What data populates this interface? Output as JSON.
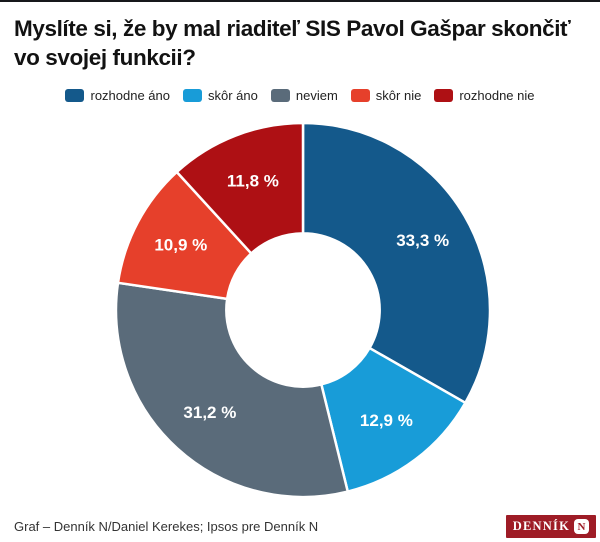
{
  "page": {
    "top_border_color": "#16181b",
    "background": "#ffffff"
  },
  "title": "Myslíte si, že by mal riaditeľ SIS Pavol Gašpar skončiť vo svojej funkcii?",
  "legend": {
    "items": [
      {
        "label": "rozhodne áno",
        "color": "#14598b"
      },
      {
        "label": "skôr áno",
        "color": "#189cd8"
      },
      {
        "label": "neviem",
        "color": "#5a6b7a"
      },
      {
        "label": "skôr nie",
        "color": "#e6402b"
      },
      {
        "label": "rozhodne nie",
        "color": "#ae1014"
      }
    ]
  },
  "chart_data": {
    "type": "pie",
    "subtype": "donut",
    "title": "Myslíte si, že by mal riaditeľ SIS Pavol Gašpar skončiť vo svojej funkcii?",
    "categories": [
      "rozhodne áno",
      "skôr áno",
      "neviem",
      "skôr nie",
      "rozhodne nie"
    ],
    "values": [
      33.3,
      12.9,
      31.2,
      10.9,
      11.8
    ],
    "labels": [
      "33,3 %",
      "12,9 %",
      "31,2 %",
      "10,9 %",
      "11,8 %"
    ],
    "colors": [
      "#14598b",
      "#189cd8",
      "#5a6b7a",
      "#e6402b",
      "#ae1014"
    ],
    "start_angle_deg": 0,
    "direction": "clockwise",
    "inner_radius_ratio": 0.41,
    "slice_gap_color": "#ffffff",
    "label_color": "#ffffff",
    "legend_position": "top"
  },
  "footer": {
    "credit": "Graf – Denník N/Daniel Kerekes; Ipsos pre Denník N",
    "logo": {
      "wordmark": "DENNÍK",
      "monogram": "N",
      "background": "#9e1c26",
      "text_color": "#ffffff"
    }
  }
}
